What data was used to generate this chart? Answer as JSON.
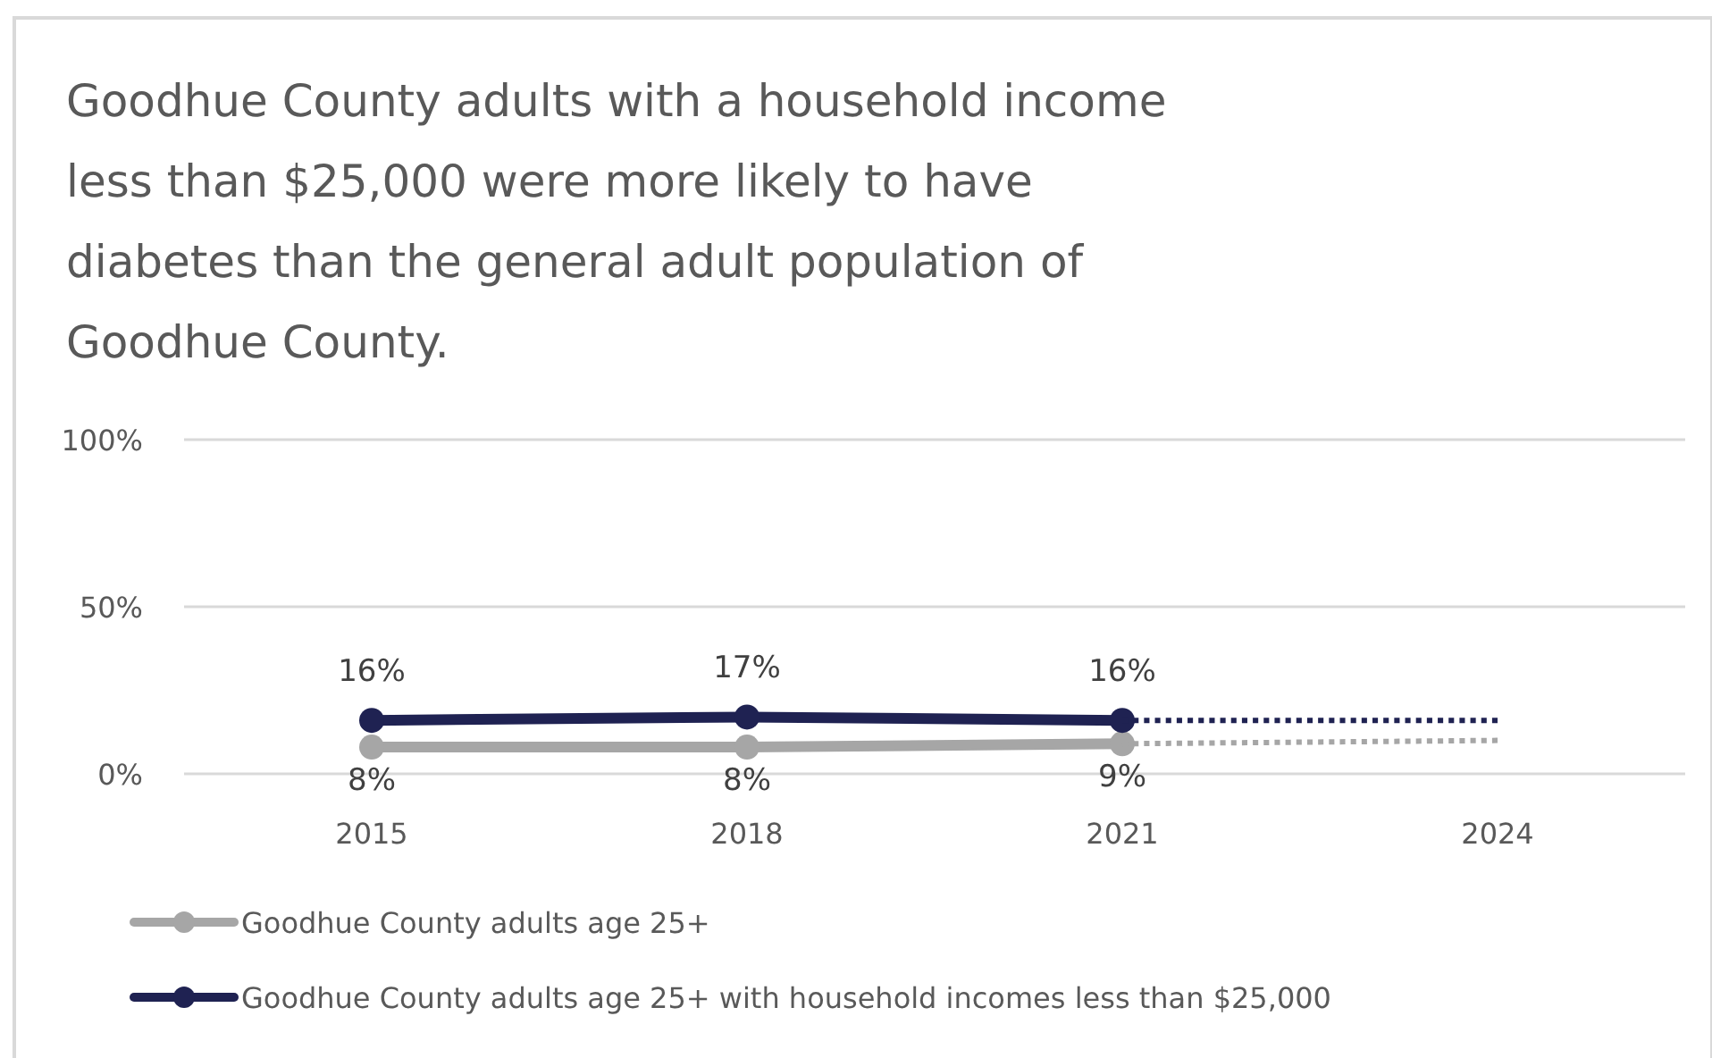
{
  "chart_data": {
    "type": "line",
    "title": "Goodhue County adults with a household income less than $25,000 were more likely to have diabetes than the general adult population of Goodhue County.",
    "categories": [
      "2015",
      "2018",
      "2021",
      "2024"
    ],
    "series": [
      {
        "name": "Goodhue County adults age 25+",
        "color": "#a6a6a6",
        "values": [
          8,
          8,
          9,
          null
        ],
        "value_labels": [
          "8%",
          "8%",
          "9%",
          null
        ],
        "marker": "circle",
        "line_style": "solid"
      },
      {
        "name": "Goodhue County adults age 25+ with household incomes less than $25,000",
        "color": "#1f2252",
        "values": [
          16,
          17,
          16,
          null
        ],
        "value_labels": [
          "16%",
          "17%",
          "16%",
          null
        ],
        "marker": "circle",
        "line_style": "solid"
      },
      {
        "color": "#a6a6a6",
        "values": [
          null,
          null,
          9,
          10
        ],
        "marker": "none",
        "line_style": "dotted"
      },
      {
        "color": "#1f2252",
        "values": [
          null,
          null,
          16,
          16
        ],
        "marker": "none",
        "line_style": "dotted"
      }
    ],
    "ylim": [
      0,
      100
    ],
    "yticks": [
      {
        "value": 0,
        "label": "0%"
      },
      {
        "value": 50,
        "label": "50%"
      },
      {
        "value": 100,
        "label": "100%"
      }
    ],
    "grid": "y",
    "legend": "bottom"
  }
}
